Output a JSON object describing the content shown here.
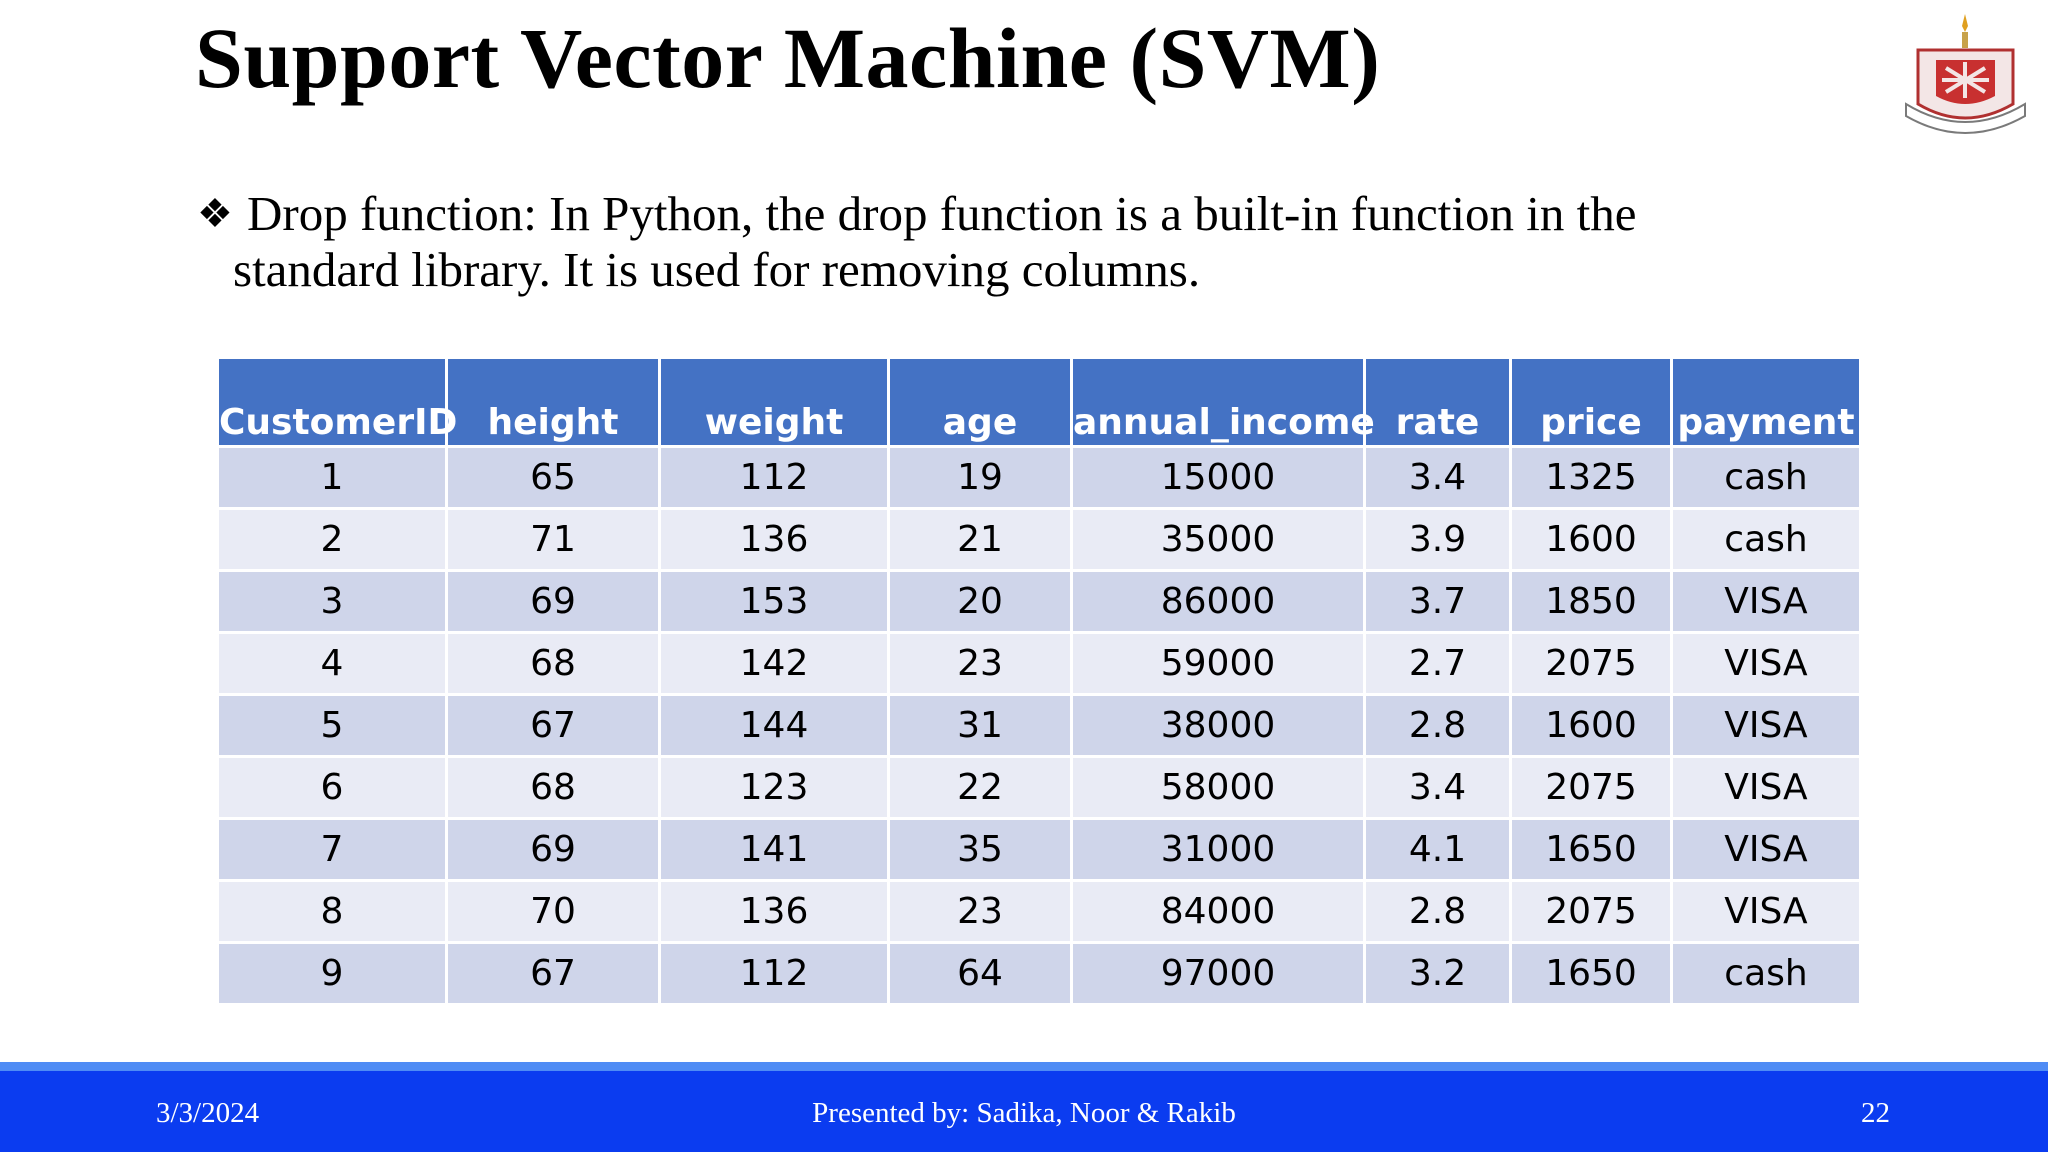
{
  "slide": {
    "title": "Support Vector Machine (SVM)",
    "bullet_mark": "❖",
    "bullet_line1": "Drop function: In Python, the drop function is a built-in function in the",
    "bullet_line2": "standard library. It is used for removing columns."
  },
  "table": {
    "headers": [
      "CustomerID",
      "height",
      "weight",
      "age",
      "annual_income",
      "rate",
      "price",
      "payment"
    ],
    "rows": [
      [
        "1",
        "65",
        "112",
        "19",
        "15000",
        "3.4",
        "1325",
        "cash"
      ],
      [
        "2",
        "71",
        "136",
        "21",
        "35000",
        "3.9",
        "1600",
        "cash"
      ],
      [
        "3",
        "69",
        "153",
        "20",
        "86000",
        "3.7",
        "1850",
        "VISA"
      ],
      [
        "4",
        "68",
        "142",
        "23",
        "59000",
        "2.7",
        "2075",
        "VISA"
      ],
      [
        "5",
        "67",
        "144",
        "31",
        "38000",
        "2.8",
        "1600",
        "VISA"
      ],
      [
        "6",
        "68",
        "123",
        "22",
        "58000",
        "3.4",
        "2075",
        "VISA"
      ],
      [
        "7",
        "69",
        "141",
        "35",
        "31000",
        "4.1",
        "1650",
        "VISA"
      ],
      [
        "8",
        "70",
        "136",
        "23",
        "84000",
        "2.8",
        "2075",
        "VISA"
      ],
      [
        "9",
        "67",
        "112",
        "64",
        "97000",
        "3.2",
        "1650",
        "cash"
      ]
    ]
  },
  "footer": {
    "date": "3/3/2024",
    "presenter": "Presented by: Sadika, Noor & Rakib",
    "page": "22"
  },
  "colors": {
    "header_bg": "#4472c4",
    "row_odd": "#cfd5ea",
    "row_even": "#e9ebf5",
    "footer_bg": "#0b3cf0"
  }
}
